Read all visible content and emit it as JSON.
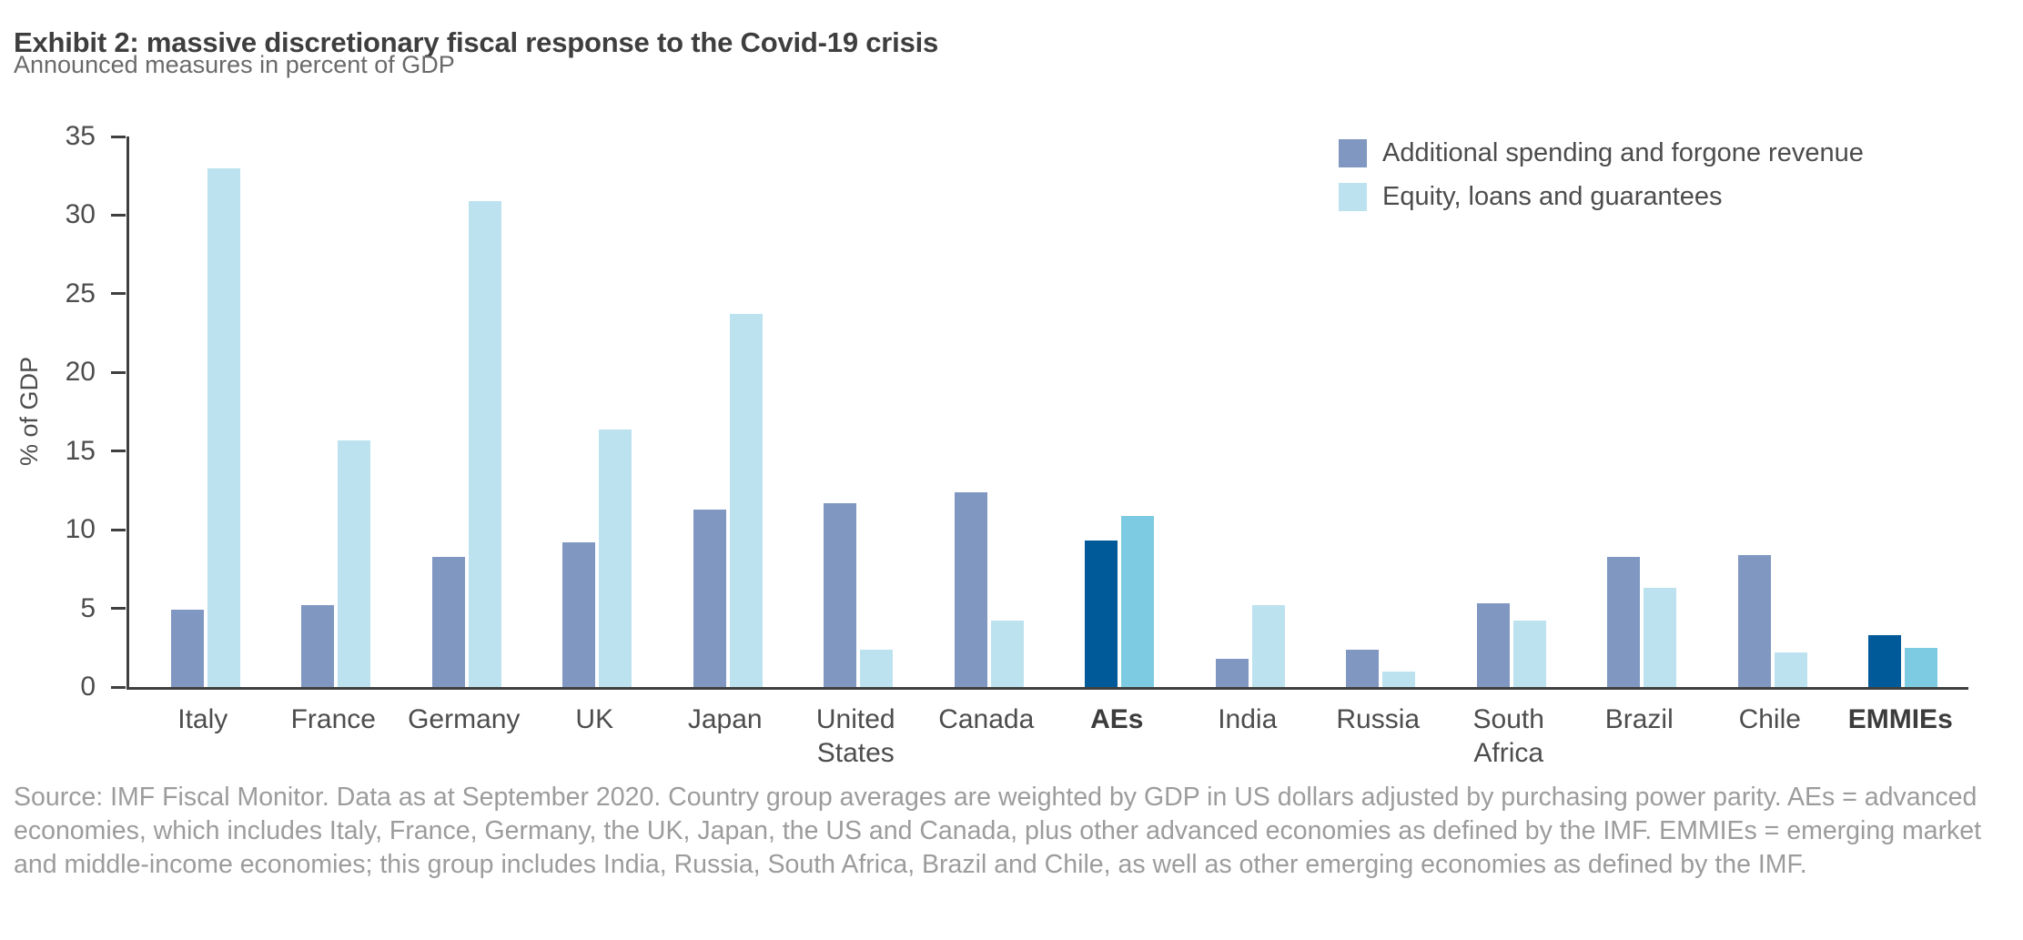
{
  "header": {
    "title": "Exhibit 2: massive discretionary fiscal response to the Covid-19 crisis",
    "subtitle": "Announced measures in percent of GDP"
  },
  "legend": {
    "items": [
      {
        "label": "Additional spending and forgone revenue",
        "color": "#8097C1"
      },
      {
        "label": "Equity, loans and guarantees",
        "color": "#BCE2EF"
      }
    ]
  },
  "chart_data": {
    "type": "bar",
    "title": "Exhibit 2: massive discretionary fiscal response to the Covid-19 crisis",
    "subtitle": "Announced measures in percent of GDP",
    "xlabel": "",
    "ylabel": "% of GDP",
    "ylim": [
      0,
      35
    ],
    "yticks": [
      0,
      5,
      10,
      15,
      20,
      25,
      30,
      35
    ],
    "grid": false,
    "legend_position": "top-right",
    "categories": [
      "Italy",
      "France",
      "Germany",
      "UK",
      "Japan",
      "United States",
      "Canada",
      "AEs",
      "India",
      "Russia",
      "South Africa",
      "Brazil",
      "Chile",
      "EMMIEs"
    ],
    "series": [
      {
        "name": "Additional spending and forgone revenue",
        "values": [
          4.9,
          5.2,
          8.3,
          9.2,
          11.3,
          11.7,
          12.4,
          9.3,
          1.8,
          2.4,
          5.3,
          8.3,
          8.4,
          3.3
        ]
      },
      {
        "name": "Equity, loans and guarantees",
        "values": [
          33.0,
          15.7,
          30.9,
          16.4,
          23.7,
          2.4,
          4.2,
          10.9,
          5.2,
          1.0,
          4.2,
          6.3,
          2.2,
          2.5
        ]
      }
    ],
    "highlight_categories": [
      "AEs",
      "EMMIEs"
    ],
    "bold_categories": [
      "AEs",
      "EMMIEs"
    ],
    "two_line_categories": [
      "United States",
      "South Africa"
    ],
    "colors": {
      "series1": "#8097C1",
      "series2": "#BCE2EF",
      "series1_highlight": "#005A9A",
      "series2_highlight": "#7DCBE2",
      "axis": "#3F3F3F",
      "tick_label": "#4D4D4D",
      "title_text": "#3E3E3E",
      "subtitle_text": "#6A6A6A",
      "source_text": "#9C9C9C"
    }
  },
  "footer": {
    "source": "Source: IMF Fiscal Monitor. Data as at September 2020. Country group averages are weighted by GDP in US dollars adjusted by purchasing power parity. AEs = advanced economies, which includes Italy, France, Germany, the UK, Japan, the US and Canada, plus other advanced economies as defined by the IMF. EMMIEs = emerging market and middle-income economies; this group includes India, Russia, South Africa, Brazil and Chile, as well as other emerging economies as defined by the IMF."
  }
}
